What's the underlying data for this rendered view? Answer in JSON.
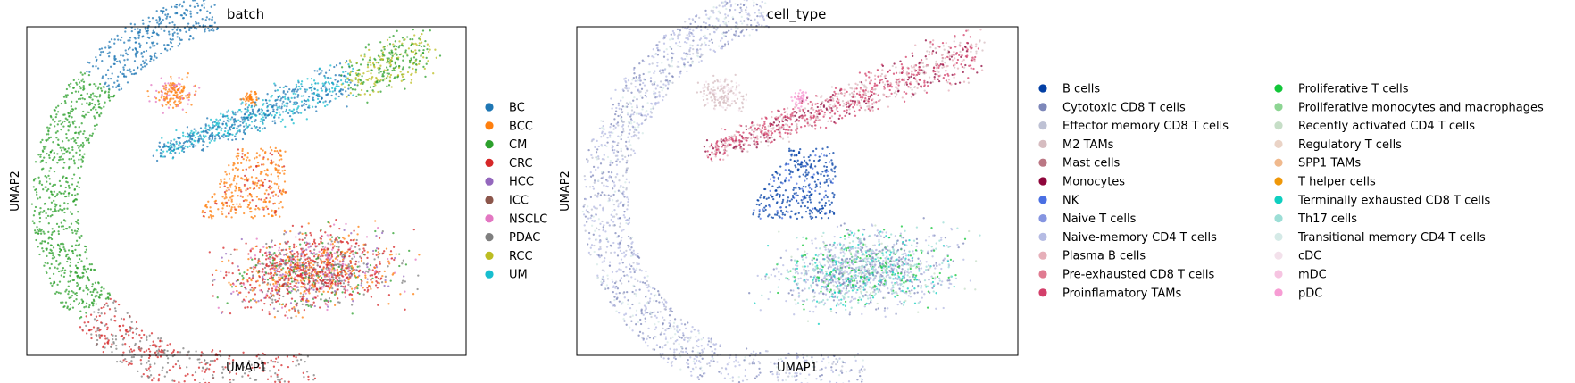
{
  "chart_data": [
    {
      "type": "scatter",
      "title": "batch",
      "xlabel": "UMAP1",
      "ylabel": "UMAP2",
      "grid": false,
      "ticks": false,
      "legend_position": "right",
      "legend_columns": 1,
      "series": [
        {
          "name": "BC",
          "color": "#1f77b4"
        },
        {
          "name": "BCC",
          "color": "#ff7f0e"
        },
        {
          "name": "CM",
          "color": "#2ca02c"
        },
        {
          "name": "CRC",
          "color": "#d62728"
        },
        {
          "name": "HCC",
          "color": "#9467bd"
        },
        {
          "name": "ICC",
          "color": "#8c564b"
        },
        {
          "name": "NSCLC",
          "color": "#e377c2"
        },
        {
          "name": "PDAC",
          "color": "#7f7f7f"
        },
        {
          "name": "RCC",
          "color": "#bcbd22"
        },
        {
          "name": "UM",
          "color": "#17becf"
        }
      ]
    },
    {
      "type": "scatter",
      "title": "cell_type",
      "xlabel": "UMAP1",
      "ylabel": "UMAP2",
      "grid": false,
      "ticks": false,
      "legend_position": "right",
      "legend_columns": 2,
      "series": [
        {
          "name": "B cells",
          "color": "#023fa5"
        },
        {
          "name": "Cytotoxic CD8 T cells",
          "color": "#7d87b9"
        },
        {
          "name": "Effector memory CD8 T cells",
          "color": "#bec1d4"
        },
        {
          "name": "M2 TAMs",
          "color": "#d6bcc0"
        },
        {
          "name": "Mast cells",
          "color": "#bb7784"
        },
        {
          "name": "Monocytes",
          "color": "#8e063b"
        },
        {
          "name": "NK",
          "color": "#4a6fe3"
        },
        {
          "name": "Naive T cells",
          "color": "#8595e1"
        },
        {
          "name": "Naive-memory CD4 T cells",
          "color": "#b5bbe3"
        },
        {
          "name": "Plasma B cells",
          "color": "#e6afb9"
        },
        {
          "name": "Pre-exhausted CD8 T cells",
          "color": "#e07b91"
        },
        {
          "name": "Proinflamatory TAMs",
          "color": "#d33f6a"
        },
        {
          "name": "Proliferative T cells",
          "color": "#11c638"
        },
        {
          "name": "Proliferative monocytes and macrophages",
          "color": "#8dd593"
        },
        {
          "name": "Recently activated CD4 T cells",
          "color": "#c6dec7"
        },
        {
          "name": "Regulatory T cells",
          "color": "#ead3c6"
        },
        {
          "name": "SPP1 TAMs",
          "color": "#f0b98d"
        },
        {
          "name": "T helper cells",
          "color": "#ef9708"
        },
        {
          "name": "Terminally exhausted CD8 T cells",
          "color": "#0fcfc0"
        },
        {
          "name": "Th17 cells",
          "color": "#9cded6"
        },
        {
          "name": "Transitional memory CD4 T cells",
          "color": "#d5eae7"
        },
        {
          "name": "cDC",
          "color": "#f3e1eb"
        },
        {
          "name": "mDC",
          "color": "#f6c4e1"
        },
        {
          "name": "pDC",
          "color": "#f79cd4"
        }
      ]
    }
  ]
}
